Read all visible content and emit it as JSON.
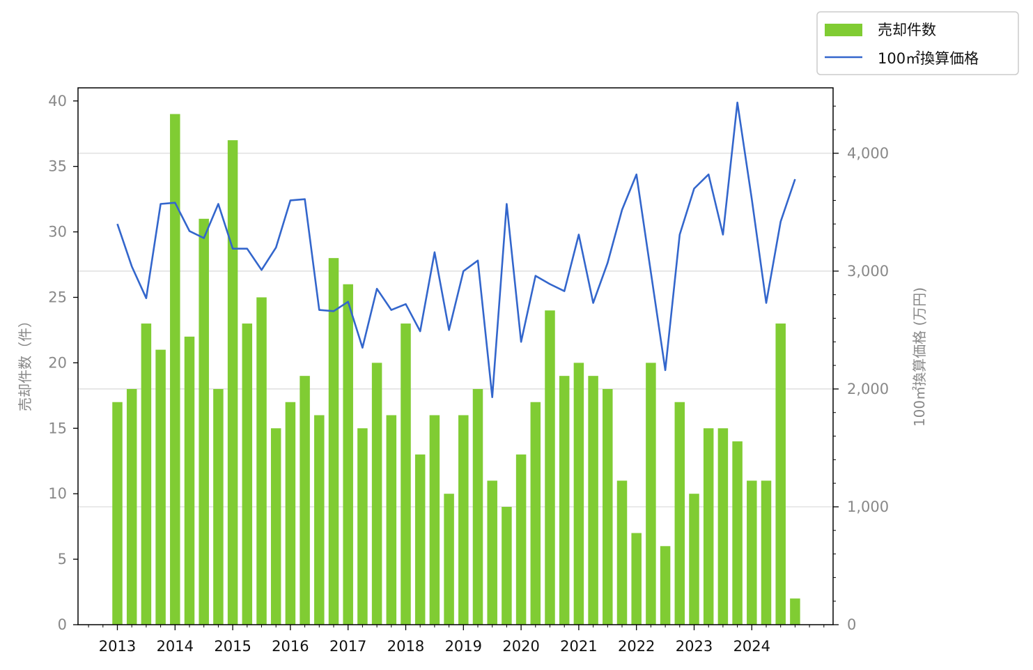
{
  "chart_data": {
    "type": "bar+line",
    "x": [
      "2013 Q1",
      "2013 Q2",
      "2013 Q3",
      "2013 Q4",
      "2014 Q1",
      "2014 Q2",
      "2014 Q3",
      "2014 Q4",
      "2015 Q1",
      "2015 Q2",
      "2015 Q3",
      "2015 Q4",
      "2016 Q1",
      "2016 Q2",
      "2016 Q3",
      "2016 Q4",
      "2017 Q1",
      "2017 Q2",
      "2017 Q3",
      "2017 Q4",
      "2018 Q1",
      "2018 Q2",
      "2018 Q3",
      "2018 Q4",
      "2019 Q1",
      "2019 Q2",
      "2019 Q3",
      "2019 Q4",
      "2020 Q1",
      "2020 Q2",
      "2020 Q3",
      "2020 Q4",
      "2021 Q1",
      "2021 Q2",
      "2021 Q3",
      "2021 Q4",
      "2022 Q1",
      "2022 Q2",
      "2022 Q3",
      "2022 Q4",
      "2023 Q1",
      "2023 Q2",
      "2023 Q3",
      "2023 Q4",
      "2024 Q1",
      "2024 Q2",
      "2024 Q3",
      "2024 Q4"
    ],
    "year_ticks": [
      "2013",
      "2014",
      "2015",
      "2016",
      "2017",
      "2018",
      "2019",
      "2020",
      "2021",
      "2022",
      "2023",
      "2024"
    ],
    "series": [
      {
        "name": "売却件数",
        "kind": "bar",
        "axis": "left",
        "color": "#80cc33",
        "values": [
          17,
          18,
          23,
          21,
          39,
          22,
          31,
          18,
          37,
          23,
          25,
          15,
          17,
          19,
          16,
          28,
          26,
          15,
          20,
          16,
          23,
          13,
          16,
          10,
          16,
          18,
          11,
          9,
          13,
          17,
          24,
          19,
          20,
          19,
          18,
          11,
          7,
          20,
          6,
          17,
          10,
          15,
          15,
          14,
          11,
          11,
          23,
          2
        ]
      },
      {
        "name": "100㎡換算価格",
        "kind": "line",
        "axis": "right",
        "color": "#3366cc",
        "values": [
          3400,
          3040,
          2770,
          3570,
          3580,
          3340,
          3280,
          3570,
          3190,
          3190,
          3010,
          3200,
          3600,
          3610,
          2670,
          2660,
          2740,
          2350,
          2850,
          2670,
          2720,
          2490,
          3160,
          2500,
          3000,
          3090,
          1930,
          3570,
          2400,
          2960,
          2890,
          2830,
          3310,
          2730,
          3070,
          3520,
          3820,
          2990,
          2160,
          3310,
          3700,
          3820,
          3310,
          4430,
          3610,
          2730,
          3420,
          3780
        ]
      }
    ],
    "y_left": {
      "label": "売却件数（件）",
      "range": [
        0,
        41
      ],
      "ticks": [
        "0",
        "5",
        "10",
        "15",
        "20",
        "25",
        "30",
        "35",
        "40"
      ]
    },
    "y_right": {
      "label": "100㎡換算価格 (万円)",
      "range": [
        0,
        4555
      ],
      "ticks": [
        "0",
        "1,000",
        "2,000",
        "3,000",
        "4,000"
      ]
    },
    "grid": "horizontal, right axis",
    "legend": {
      "placement": "top-right",
      "items": [
        "売却件数",
        "100㎡換算価格"
      ]
    }
  }
}
